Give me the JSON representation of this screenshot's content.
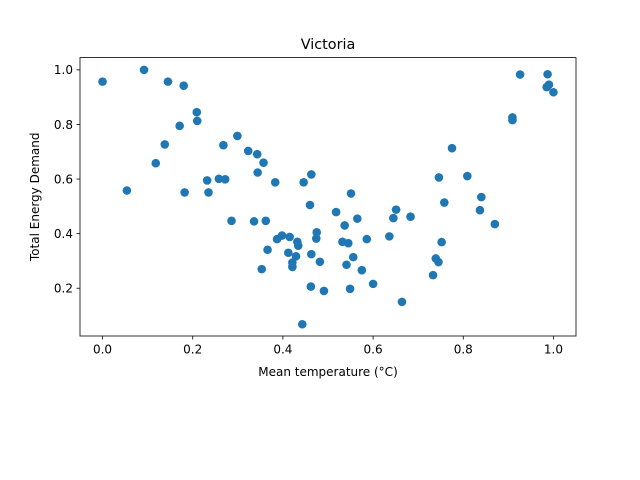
{
  "chart_data": {
    "type": "scatter",
    "title": "Victoria",
    "xlabel": "Mean temperature (°C)",
    "ylabel": "Total Energy Demand",
    "xlim": [
      -0.05,
      1.05
    ],
    "ylim": [
      0.025,
      1.045
    ],
    "x_ticks": [
      "0.0",
      "0.2",
      "0.4",
      "0.6",
      "0.8",
      "1.0"
    ],
    "y_ticks": [
      "0.2",
      "0.4",
      "0.6",
      "0.8",
      "1.0"
    ],
    "grid": false,
    "marker_color": "#1f77b4",
    "points": [
      [
        0.0,
        0.957
      ],
      [
        0.054,
        0.558
      ],
      [
        0.092,
        1.0
      ],
      [
        0.118,
        0.658
      ],
      [
        0.138,
        0.727
      ],
      [
        0.145,
        0.957
      ],
      [
        0.171,
        0.795
      ],
      [
        0.18,
        0.942
      ],
      [
        0.182,
        0.551
      ],
      [
        0.209,
        0.845
      ],
      [
        0.21,
        0.813
      ],
      [
        0.232,
        0.595
      ],
      [
        0.235,
        0.551
      ],
      [
        0.258,
        0.601
      ],
      [
        0.268,
        0.724
      ],
      [
        0.272,
        0.599
      ],
      [
        0.286,
        0.447
      ],
      [
        0.299,
        0.758
      ],
      [
        0.323,
        0.703
      ],
      [
        0.336,
        0.445
      ],
      [
        0.343,
        0.691
      ],
      [
        0.344,
        0.624
      ],
      [
        0.353,
        0.27
      ],
      [
        0.357,
        0.66
      ],
      [
        0.362,
        0.447
      ],
      [
        0.366,
        0.341
      ],
      [
        0.383,
        0.588
      ],
      [
        0.387,
        0.38
      ],
      [
        0.398,
        0.393
      ],
      [
        0.412,
        0.33
      ],
      [
        0.415,
        0.388
      ],
      [
        0.421,
        0.294
      ],
      [
        0.421,
        0.278
      ],
      [
        0.429,
        0.317
      ],
      [
        0.432,
        0.37
      ],
      [
        0.434,
        0.356
      ],
      [
        0.443,
        0.068
      ],
      [
        0.446,
        0.588
      ],
      [
        0.46,
        0.505
      ],
      [
        0.463,
        0.617
      ],
      [
        0.463,
        0.325
      ],
      [
        0.462,
        0.206
      ],
      [
        0.474,
        0.382
      ],
      [
        0.475,
        0.405
      ],
      [
        0.482,
        0.297
      ],
      [
        0.491,
        0.19
      ],
      [
        0.518,
        0.479
      ],
      [
        0.532,
        0.37
      ],
      [
        0.537,
        0.43
      ],
      [
        0.541,
        0.286
      ],
      [
        0.545,
        0.365
      ],
      [
        0.549,
        0.198
      ],
      [
        0.551,
        0.547
      ],
      [
        0.556,
        0.314
      ],
      [
        0.565,
        0.455
      ],
      [
        0.575,
        0.266
      ],
      [
        0.586,
        0.38
      ],
      [
        0.6,
        0.216
      ],
      [
        0.636,
        0.39
      ],
      [
        0.645,
        0.457
      ],
      [
        0.651,
        0.488
      ],
      [
        0.664,
        0.15
      ],
      [
        0.683,
        0.462
      ],
      [
        0.733,
        0.248
      ],
      [
        0.739,
        0.309
      ],
      [
        0.745,
        0.296
      ],
      [
        0.746,
        0.606
      ],
      [
        0.752,
        0.369
      ],
      [
        0.758,
        0.514
      ],
      [
        0.775,
        0.713
      ],
      [
        0.809,
        0.611
      ],
      [
        0.837,
        0.486
      ],
      [
        0.84,
        0.534
      ],
      [
        0.87,
        0.435
      ],
      [
        0.909,
        0.816
      ],
      [
        0.909,
        0.826
      ],
      [
        0.926,
        0.983
      ],
      [
        0.985,
        0.937
      ],
      [
        0.987,
        0.984
      ],
      [
        0.99,
        0.946
      ],
      [
        1.0,
        0.918
      ]
    ]
  }
}
